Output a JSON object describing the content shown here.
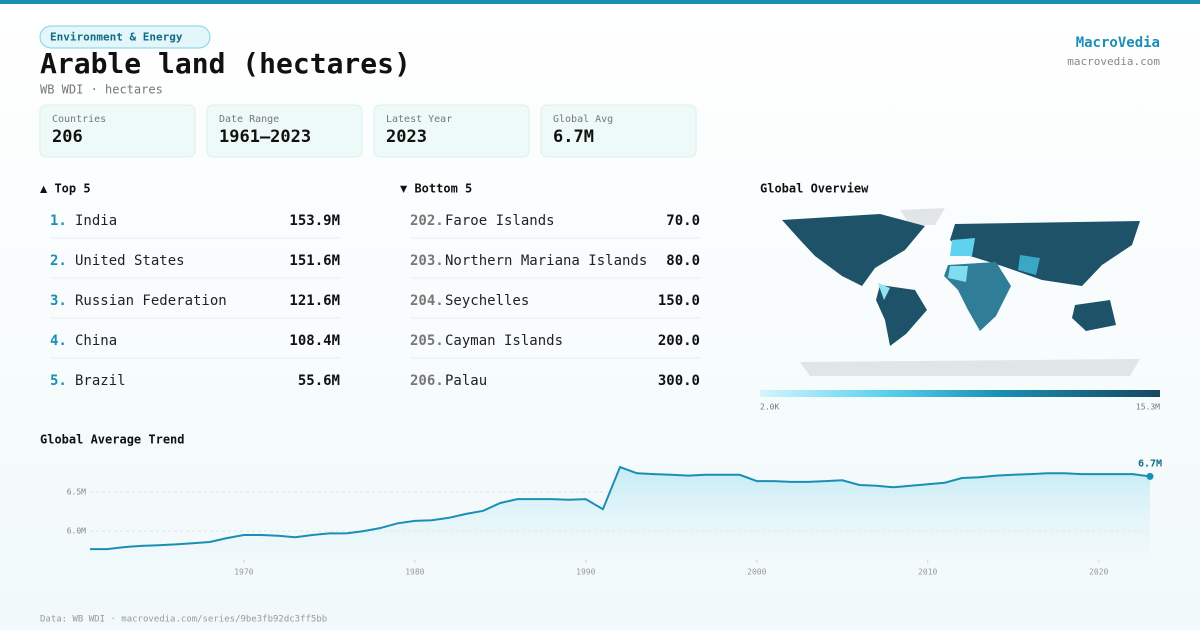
{
  "header": {
    "tag": "Environment & Energy",
    "title": "Arable land (hectares)",
    "subtitle": "WB WDI · hectares",
    "brand": "MacroVedia",
    "site": "macrovedia.com"
  },
  "stats": [
    {
      "label": "Countries",
      "value": "206"
    },
    {
      "label": "Date Range",
      "value": "1961–2023"
    },
    {
      "label": "Latest Year",
      "value": "2023"
    },
    {
      "label": "Global Avg",
      "value": "6.7M"
    }
  ],
  "top": {
    "title": "▲ Top 5",
    "rows": [
      {
        "rank": "1.",
        "name": "India",
        "value": "153.9M"
      },
      {
        "rank": "2.",
        "name": "United States",
        "value": "151.6M"
      },
      {
        "rank": "3.",
        "name": "Russian Federation",
        "value": "121.6M"
      },
      {
        "rank": "4.",
        "name": "China",
        "value": "108.4M"
      },
      {
        "rank": "5.",
        "name": "Brazil",
        "value": "55.6M"
      }
    ]
  },
  "bottom": {
    "title": "▼ Bottom 5",
    "rows": [
      {
        "rank": "202.",
        "name": "Faroe Islands",
        "value": "70.0"
      },
      {
        "rank": "203.",
        "name": "Northern Mariana Islands",
        "value": "80.0"
      },
      {
        "rank": "204.",
        "name": "Seychelles",
        "value": "150.0"
      },
      {
        "rank": "205.",
        "name": "Cayman Islands",
        "value": "200.0"
      },
      {
        "rank": "206.",
        "name": "Palau",
        "value": "300.0"
      }
    ]
  },
  "map": {
    "title": "Global Overview",
    "min_label": "2.0K",
    "max_label": "15.3M"
  },
  "chart_data": {
    "type": "line",
    "title": "Global Average Trend",
    "color": "#1b8fb3",
    "x": [
      1961,
      1962,
      1963,
      1964,
      1965,
      1966,
      1967,
      1968,
      1969,
      1970,
      1971,
      1972,
      1973,
      1974,
      1975,
      1976,
      1977,
      1978,
      1979,
      1980,
      1981,
      1982,
      1983,
      1984,
      1985,
      1986,
      1987,
      1988,
      1989,
      1990,
      1991,
      1992,
      1993,
      1994,
      1995,
      1996,
      1997,
      1998,
      1999,
      2000,
      2001,
      2002,
      2003,
      2004,
      2005,
      2006,
      2007,
      2008,
      2009,
      2010,
      2011,
      2012,
      2013,
      2014,
      2015,
      2016,
      2017,
      2018,
      2019,
      2020,
      2021,
      2022,
      2023
    ],
    "values": [
      5770000,
      5770000,
      5795000,
      5810000,
      5820000,
      5830000,
      5845000,
      5860000,
      5910000,
      5950000,
      5950000,
      5940000,
      5920000,
      5950000,
      5970000,
      5970000,
      6000000,
      6040000,
      6100000,
      6130000,
      6140000,
      6170000,
      6220000,
      6260000,
      6360000,
      6410000,
      6410000,
      6410000,
      6400000,
      6410000,
      6280000,
      6820000,
      6740000,
      6730000,
      6720000,
      6710000,
      6720000,
      6720000,
      6720000,
      6640000,
      6640000,
      6630000,
      6630000,
      6640000,
      6650000,
      6590000,
      6580000,
      6560000,
      6580000,
      6600000,
      6620000,
      6680000,
      6690000,
      6710000,
      6720000,
      6730000,
      6740000,
      6740000,
      6730000,
      6730000,
      6730000,
      6730000,
      6700000
    ],
    "value_labels": [
      null,
      null,
      null,
      null,
      null,
      null,
      null,
      null,
      null,
      null,
      null,
      null,
      null,
      null,
      null,
      null,
      null,
      null,
      null,
      null,
      null,
      null,
      null,
      null,
      null,
      null,
      null,
      null,
      null,
      null,
      null,
      null,
      null,
      null,
      null,
      null,
      null,
      null,
      null,
      null,
      null,
      null,
      null,
      null,
      null,
      null,
      null,
      null,
      null,
      null,
      null,
      null,
      null,
      null,
      null,
      null,
      null,
      null,
      null,
      null,
      null,
      null,
      "6.7M"
    ],
    "xlim": [
      1961,
      2023
    ],
    "xticks": [
      1970,
      1980,
      1990,
      2000,
      2010,
      2020
    ],
    "ylim": [
      5630000,
      6910000
    ],
    "yticks": [
      {
        "value": 6000000,
        "label": "6.0M"
      },
      {
        "value": 6500000,
        "label": "6.5M"
      }
    ],
    "grid": true
  },
  "footer": "Data: WB WDI · macrovedia.com/series/9be3fb92dc3ff5bb"
}
